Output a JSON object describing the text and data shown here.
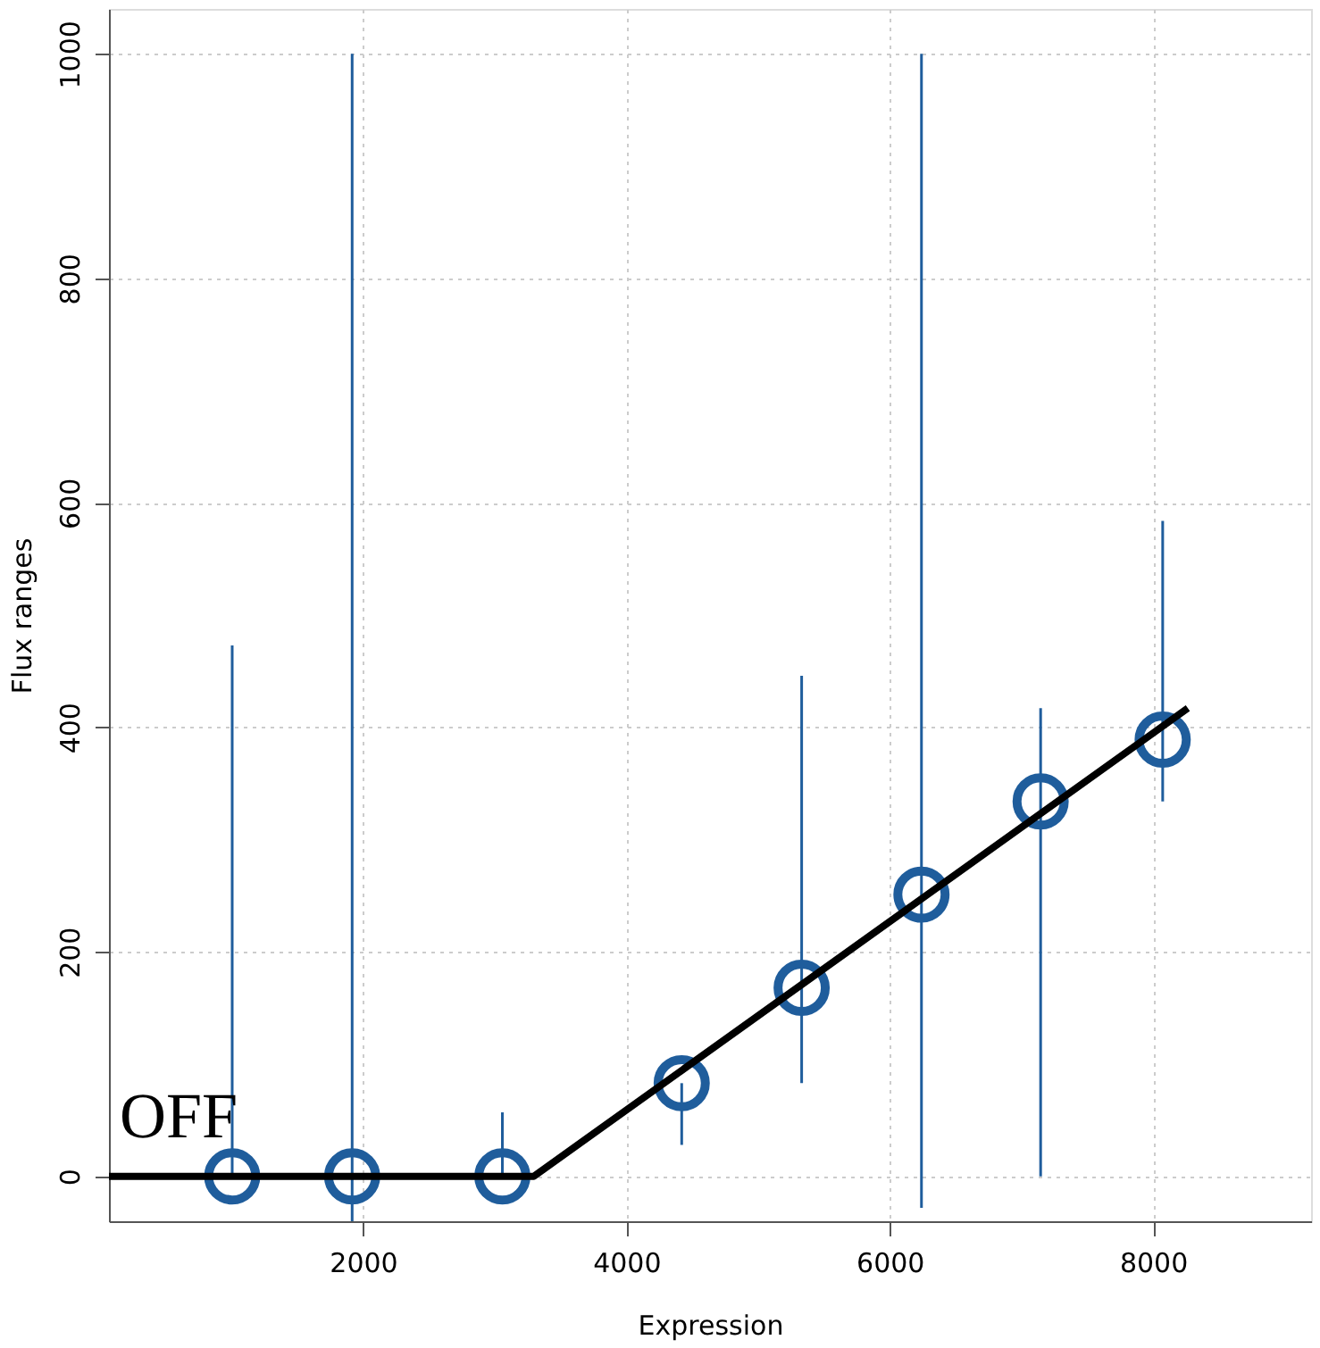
{
  "chart_data": {
    "type": "scatter",
    "xlabel": "Expression",
    "ylabel": "Flux ranges",
    "xlim": [
      70,
      9200
    ],
    "ylim": [
      -40,
      1040
    ],
    "xticks": [
      2000,
      4000,
      6000,
      8000
    ],
    "yticks": [
      0,
      200,
      400,
      600,
      800,
      1000
    ],
    "grid": true,
    "series": [
      {
        "marker": "circle",
        "color": "#1f5d9c",
        "x": [
          1006,
          1917,
          3058,
          4420,
          5331,
          6241,
          7146,
          8073
        ],
        "values": [
          0,
          0,
          0,
          83,
          168,
          251,
          334,
          389
        ],
        "errors": [
          [
            0,
            473
          ],
          [
            -40,
            1000
          ],
          [
            0,
            57
          ],
          [
            28,
            83
          ],
          [
            83,
            446
          ],
          [
            -28,
            1000
          ],
          [
            0,
            417
          ],
          [
            334,
            584
          ]
        ]
      },
      {
        "type": "line",
        "color": "#000000",
        "line_style": "solid",
        "x": [
          70,
          3296,
          8264
        ],
        "values": [
          0,
          0,
          417
        ]
      }
    ],
    "annotations": [
      "OFF"
    ]
  }
}
